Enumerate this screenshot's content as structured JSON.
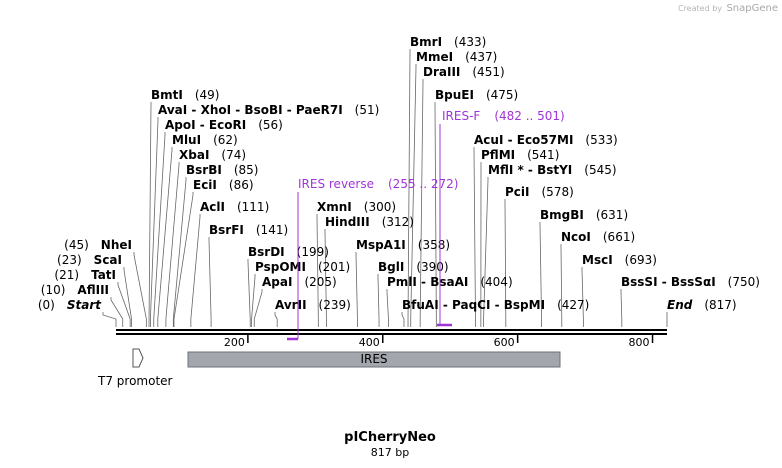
{
  "credit": {
    "prefix": "Created by",
    "brand": "SnapGene"
  },
  "enzymes": [
    {
      "name": "BmrI",
      "site": "(433)"
    },
    {
      "name": "MmeI",
      "site": "(437)"
    },
    {
      "name": "DraIII",
      "site": "(451)"
    },
    {
      "name": "BpuEI",
      "site": "(475)"
    },
    {
      "name": "BmtI",
      "site": "(49)"
    },
    {
      "name": "AvaI - XhoI - BsoBI - PaeR7I",
      "site": "(51)"
    },
    {
      "name": "ApoI - EcoRI",
      "site": "(56)"
    },
    {
      "name": "MluI",
      "site": "(62)"
    },
    {
      "name": "XbaI",
      "site": "(74)"
    },
    {
      "name": "BsrBI",
      "site": "(85)"
    },
    {
      "name": "EciI",
      "site": "(86)"
    },
    {
      "name": "AclI",
      "site": "(111)"
    },
    {
      "name": "BsrFI",
      "site": "(141)"
    },
    {
      "name": "AcuI - Eco57MI",
      "site": "(533)"
    },
    {
      "name": "PflMI",
      "site": "(541)"
    },
    {
      "name": "MflI * - BstYI",
      "site": "(545)"
    },
    {
      "name": "PciI",
      "site": "(578)"
    },
    {
      "name": "BmgBI",
      "site": "(631)"
    },
    {
      "name": "NcoI",
      "site": "(661)"
    },
    {
      "name": "MscI",
      "site": "(693)"
    },
    {
      "name": "BssSI - BssSαI",
      "site": "(750)"
    },
    {
      "name": "XmnI",
      "site": "(300)"
    },
    {
      "name": "HindIII",
      "site": "(312)"
    },
    {
      "name": "MspA1I",
      "site": "(358)"
    },
    {
      "name": "BsrDI",
      "site": "(199)"
    },
    {
      "name": "PspOMI",
      "site": "(201)"
    },
    {
      "name": "ApaI",
      "site": "(205)"
    },
    {
      "name": "AvrII",
      "site": "(239)"
    },
    {
      "name": "BglI",
      "site": "(390)"
    },
    {
      "name": "PmlI - BsaAI",
      "site": "(404)"
    },
    {
      "name": "BfuAI - PaqCI - BspMI",
      "site": "(427)"
    },
    {
      "name": "NheI",
      "site": "(45)"
    },
    {
      "name": "ScaI",
      "site": "(23)"
    },
    {
      "name": "TatI",
      "site": "(21)"
    },
    {
      "name": "AflIII",
      "site": "(10)"
    },
    {
      "name": "Start",
      "site": "(0)"
    },
    {
      "name": "End",
      "site": "(817)"
    }
  ],
  "primers": [
    {
      "name": "IRES-F",
      "range": "(482 .. 501)"
    },
    {
      "name": "IRES reverse",
      "range": "(255 .. 272)"
    }
  ],
  "ruler": [
    200,
    400,
    600,
    800
  ],
  "features": [
    {
      "name": "T7 promoter"
    },
    {
      "name": "IRES"
    }
  ],
  "title": "pICherryNeo",
  "subtitle": "817 bp"
}
